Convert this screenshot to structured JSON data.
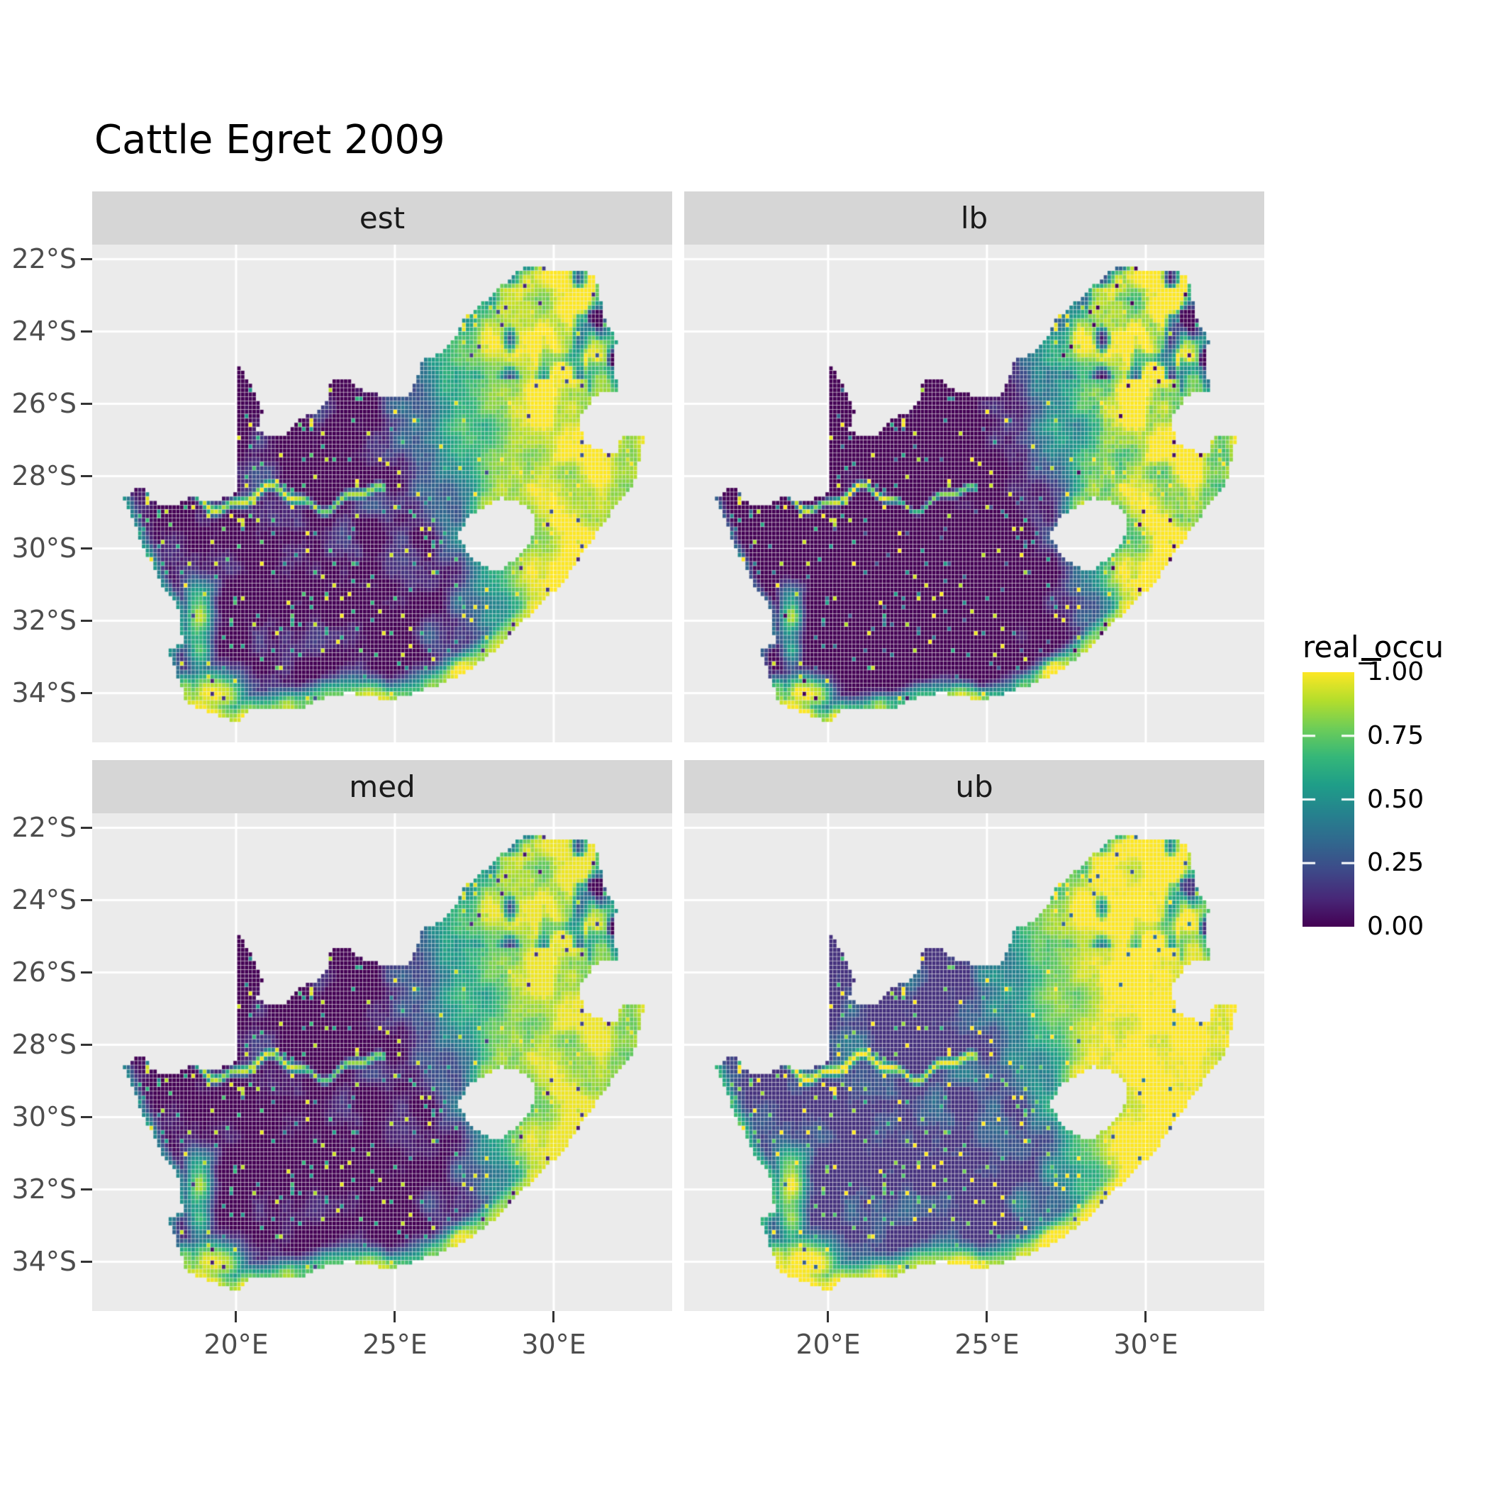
{
  "title": "Cattle Egret 2009",
  "facet_labels": {
    "est": "est",
    "lb": "lb",
    "med": "med",
    "ub": "ub"
  },
  "axes": {
    "x": {
      "ticks": [
        "20°E",
        "25°E",
        "30°E"
      ],
      "values": [
        20,
        25,
        30
      ]
    },
    "y": {
      "ticks": [
        "22°S",
        "24°S",
        "26°S",
        "28°S",
        "30°S",
        "32°S",
        "34°S"
      ],
      "values": [
        -22,
        -24,
        -26,
        -28,
        -30,
        -32,
        -34
      ]
    }
  },
  "legend": {
    "title": "real_occu",
    "ticks": [
      "1.00",
      "0.75",
      "0.50",
      "0.25",
      "0.00"
    ],
    "tick_values": [
      1.0,
      0.75,
      0.5,
      0.25,
      0.0
    ]
  },
  "colors": {
    "background": "#FFFFFF",
    "panel_bg": "#EBEBEB",
    "strip_bg": "#D6D6D6",
    "strip_text": "#1A1A1A",
    "grid": "#FFFFFF",
    "axis_text": "#4D4D4D",
    "tick_mark": "#333333",
    "title_text": "#000000",
    "legend_text": "#000000"
  },
  "chart_data": {
    "type": "heatmap",
    "title": "Cattle Egret 2009",
    "variable": "real_occu",
    "value_range": [
      0,
      1
    ],
    "facet_order": [
      "est",
      "lb",
      "med",
      "ub"
    ],
    "region": "South Africa",
    "xlim": [
      15.47,
      33.73
    ],
    "ylim": [
      -35.36,
      -21.6
    ],
    "xlabel": "",
    "ylabel": "",
    "grid": true,
    "legend_position": "right",
    "viridis_stops": [
      [
        0.0,
        "#440154"
      ],
      [
        0.111,
        "#482878"
      ],
      [
        0.222,
        "#3E4A89"
      ],
      [
        0.333,
        "#31688E"
      ],
      [
        0.444,
        "#26828E"
      ],
      [
        0.556,
        "#1F9E89"
      ],
      [
        0.667,
        "#35B779"
      ],
      [
        0.778,
        "#6DCD59"
      ],
      [
        0.889,
        "#B4DE2C"
      ],
      [
        1.0,
        "#FDE725"
      ]
    ],
    "polygon": [
      [
        16.45,
        -28.6
      ],
      [
        17.05,
        -28.25
      ],
      [
        17.4,
        -28.72
      ],
      [
        18.0,
        -28.87
      ],
      [
        18.65,
        -28.55
      ],
      [
        19.3,
        -28.75
      ],
      [
        19.98,
        -28.45
      ],
      [
        19.98,
        -24.77
      ],
      [
        20.35,
        -25.3
      ],
      [
        20.62,
        -25.82
      ],
      [
        20.84,
        -26.16
      ],
      [
        20.66,
        -26.76
      ],
      [
        20.88,
        -26.82
      ],
      [
        21.5,
        -26.85
      ],
      [
        22.05,
        -26.39
      ],
      [
        22.56,
        -26.2
      ],
      [
        22.88,
        -25.95
      ],
      [
        23.0,
        -25.32
      ],
      [
        23.46,
        -25.28
      ],
      [
        24.0,
        -25.63
      ],
      [
        24.75,
        -25.82
      ],
      [
        25.4,
        -25.74
      ],
      [
        25.62,
        -25.46
      ],
      [
        25.9,
        -24.75
      ],
      [
        26.4,
        -24.63
      ],
      [
        26.86,
        -24.25
      ],
      [
        27.15,
        -23.65
      ],
      [
        27.76,
        -23.22
      ],
      [
        28.2,
        -22.87
      ],
      [
        29.05,
        -22.22
      ],
      [
        29.45,
        -22.16
      ],
      [
        30.0,
        -22.34
      ],
      [
        30.65,
        -22.3
      ],
      [
        31.3,
        -22.42
      ],
      [
        31.56,
        -23.5
      ],
      [
        31.98,
        -24.3
      ],
      [
        31.9,
        -25.0
      ],
      [
        32.02,
        -25.62
      ],
      [
        31.3,
        -25.78
      ],
      [
        30.79,
        -26.45
      ],
      [
        31.0,
        -27.1
      ],
      [
        31.6,
        -27.32
      ],
      [
        31.97,
        -27.31
      ],
      [
        32.13,
        -26.85
      ],
      [
        32.89,
        -26.86
      ],
      [
        32.55,
        -28.2
      ],
      [
        31.98,
        -28.8
      ],
      [
        31.1,
        -29.9
      ],
      [
        30.3,
        -30.95
      ],
      [
        29.5,
        -31.62
      ],
      [
        28.6,
        -32.4
      ],
      [
        27.9,
        -33.03
      ],
      [
        27.05,
        -33.52
      ],
      [
        26.4,
        -33.76
      ],
      [
        25.65,
        -33.99
      ],
      [
        24.85,
        -34.2
      ],
      [
        23.6,
        -33.99
      ],
      [
        22.9,
        -34.09
      ],
      [
        22.1,
        -34.4
      ],
      [
        21.3,
        -34.46
      ],
      [
        20.5,
        -34.46
      ],
      [
        20.0,
        -34.82
      ],
      [
        19.4,
        -34.62
      ],
      [
        18.85,
        -34.4
      ],
      [
        18.46,
        -34.33
      ],
      [
        18.3,
        -33.9
      ],
      [
        17.86,
        -32.8
      ],
      [
        18.32,
        -32.6
      ],
      [
        18.2,
        -31.66
      ],
      [
        17.56,
        -30.86
      ],
      [
        17.06,
        -29.9
      ],
      [
        16.76,
        -29.26
      ],
      [
        16.45,
        -28.6
      ]
    ],
    "lesotho_hole": [
      [
        27.0,
        -29.63
      ],
      [
        27.35,
        -29.1
      ],
      [
        27.75,
        -28.87
      ],
      [
        28.35,
        -28.6
      ],
      [
        28.95,
        -28.73
      ],
      [
        29.35,
        -29.05
      ],
      [
        29.45,
        -29.38
      ],
      [
        29.25,
        -29.85
      ],
      [
        28.9,
        -30.2
      ],
      [
        28.3,
        -30.63
      ],
      [
        27.75,
        -30.5
      ],
      [
        27.35,
        -30.15
      ],
      [
        27.0,
        -29.63
      ]
    ],
    "coast_line": [
      [
        32.89,
        -26.86
      ],
      [
        32.55,
        -28.2
      ],
      [
        31.98,
        -28.8
      ],
      [
        31.1,
        -29.9
      ],
      [
        30.3,
        -30.95
      ],
      [
        29.5,
        -31.62
      ],
      [
        28.6,
        -32.4
      ],
      [
        27.9,
        -33.03
      ],
      [
        27.05,
        -33.52
      ],
      [
        26.4,
        -33.76
      ],
      [
        25.65,
        -33.99
      ],
      [
        24.85,
        -34.2
      ],
      [
        23.6,
        -33.99
      ],
      [
        22.9,
        -34.09
      ],
      [
        22.1,
        -34.4
      ],
      [
        21.3,
        -34.46
      ],
      [
        20.5,
        -34.46
      ],
      [
        20.0,
        -34.82
      ],
      [
        19.4,
        -34.62
      ],
      [
        18.85,
        -34.4
      ],
      [
        18.46,
        -34.33
      ],
      [
        18.3,
        -33.9
      ]
    ],
    "west_coast_line": [
      [
        18.3,
        -33.9
      ],
      [
        17.86,
        -32.8
      ],
      [
        18.32,
        -32.6
      ],
      [
        18.2,
        -31.66
      ],
      [
        17.56,
        -30.86
      ],
      [
        17.06,
        -29.9
      ],
      [
        16.76,
        -29.26
      ],
      [
        16.45,
        -28.6
      ]
    ],
    "generation": {
      "cell_deg": 0.12,
      "lon_scale": 0.88,
      "base": {
        "L0": 26.6,
        "lat0": -24.5,
        "curv": 0.035,
        "w": 0.9
      },
      "coast": {
        "d": 0.42,
        "w": 0.14,
        "amp": 0.96
      },
      "west_coast": {
        "d": 0.16,
        "w": 0.07,
        "amp": 0.55
      },
      "river": {
        "lon0": 17.2,
        "lon1": 24.7,
        "lat": -28.62,
        "a1": 0.28,
        "f1": 2.0,
        "a2": 0.1,
        "f2": 5.3,
        "width": 0.13,
        "amp": 0.88
      },
      "blobs": [
        [
          19.4,
          -34.0,
          0.85,
          0.5,
          0.97
        ],
        [
          18.85,
          -32.1,
          0.35,
          1.0,
          0.8
        ],
        [
          28.3,
          -26.3,
          1.5,
          1.1,
          0.55
        ]
      ],
      "noise": {
        "s1": 0.9,
        "a1": 0.36,
        "s2": 0.45,
        "a2": 0.22,
        "jitter": 0.06
      },
      "ne_dark": {
        "lat_min": -25.3,
        "lon_mid": 28.3,
        "amp": 1.1
      },
      "edge_dark": {
        "lon_min": 31.1,
        "lat_min": -25.8,
        "amp": 0.9
      },
      "speckle": {
        "p_yellow": 0.02,
        "p_teal": 0.05,
        "p_dark": 0.02
      }
    },
    "facet_transforms": {
      "est": {
        "a": 1.0,
        "b": 0.0,
        "g": 1.0
      },
      "lb": {
        "a": 1.22,
        "b": -0.2,
        "g": 1.4
      },
      "med": {
        "a": 1.0,
        "b": -0.02,
        "g": 1.12
      },
      "ub": {
        "a": 1.0,
        "b": 0.1,
        "g": 0.85
      }
    }
  }
}
